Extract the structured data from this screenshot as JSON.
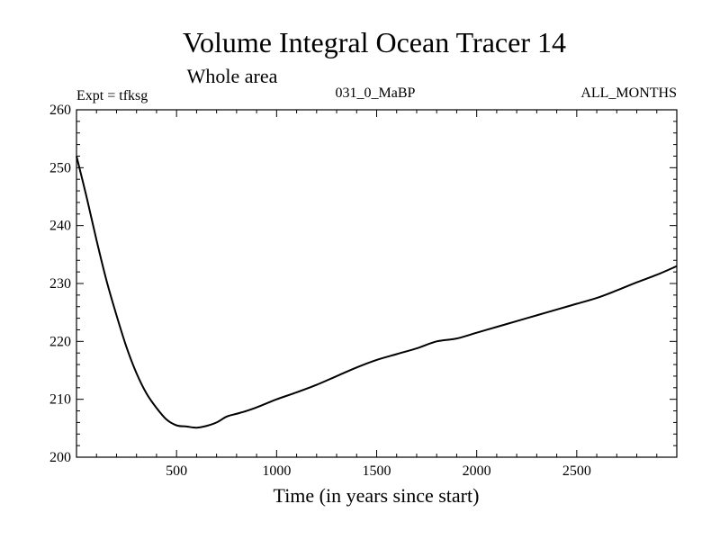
{
  "chart_data": {
    "type": "line",
    "title": "Volume Integral Ocean Tracer 14",
    "subtitle": "Whole area",
    "experiment_label": "Expt = tfksg",
    "run_label": "031_0_MaBP",
    "months_label": "ALL_MONTHS",
    "xlabel": "Time (in years since start)",
    "ylabel": "",
    "xlim": [
      0,
      3000
    ],
    "ylim": [
      200,
      260
    ],
    "x_ticks": [
      500,
      1000,
      1500,
      2000,
      2500
    ],
    "x_tick_labels": [
      "500",
      "1000",
      "1500",
      "2000",
      "2500"
    ],
    "y_ticks": [
      200,
      210,
      220,
      230,
      240,
      250,
      260
    ],
    "y_tick_labels": [
      "200",
      "210",
      "220",
      "230",
      "240",
      "250",
      "260"
    ],
    "grid": false,
    "series": [
      {
        "name": "Tracer 14",
        "color": "#000000",
        "x": [
          0,
          50,
          100,
          150,
          200,
          250,
          300,
          350,
          400,
          450,
          500,
          550,
          600,
          650,
          700,
          750,
          800,
          850,
          900,
          950,
          1000,
          1100,
          1200,
          1300,
          1400,
          1500,
          1600,
          1700,
          1800,
          1900,
          2000,
          2100,
          2200,
          2300,
          2400,
          2500,
          2600,
          2700,
          2800,
          2900,
          3000
        ],
        "values": [
          252,
          245,
          237.5,
          230.5,
          224.5,
          219,
          214.5,
          211,
          208.5,
          206.5,
          205.5,
          205.3,
          205.1,
          205.4,
          206,
          207,
          207.5,
          208,
          208.6,
          209.3,
          210,
          211.2,
          212.5,
          214,
          215.5,
          216.8,
          217.8,
          218.8,
          220,
          220.5,
          221.5,
          222.5,
          223.5,
          224.5,
          225.5,
          226.5,
          227.5,
          228.8,
          230.2,
          231.5,
          233
        ]
      }
    ]
  }
}
